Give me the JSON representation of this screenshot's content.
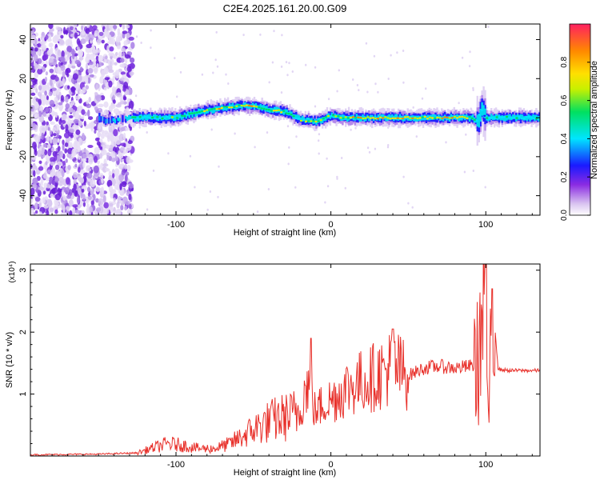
{
  "title": "C2E4.2025.161.20.00.G09",
  "spectrogram": {
    "xlabel": "Height of straight line (km)",
    "ylabel": "Frequency (Hz)",
    "x_ticks": [
      "-100",
      "0",
      "100"
    ],
    "y_ticks": [
      "40",
      "20",
      "0",
      "-20",
      "-40"
    ],
    "colorbar_label": "Normalized spectral amplitude",
    "colorbar_ticks": [
      "0.0",
      "0.2",
      "0.4",
      "0.6",
      "0.8"
    ],
    "colorbar_colors": [
      "#d9c3f0",
      "#8a2be2",
      "#1a1aff",
      "#00e5ff",
      "#00e060",
      "#c8f000",
      "#ffe000",
      "#ff8800",
      "#ff2060"
    ]
  },
  "snr": {
    "xlabel": "Height of straight line (km)",
    "ylabel": "SNR (10 * v/v)",
    "multiplier": "(x10⁴)",
    "x_ticks": [
      "-100",
      "0",
      "100"
    ],
    "y_ticks": [
      "3",
      "2",
      "1"
    ],
    "line_color": "#e8302a"
  },
  "chart_data": [
    {
      "type": "heatmap",
      "title": "C2E4.2025.161.20.00.G09",
      "xlabel": "Height of straight line (km)",
      "ylabel": "Frequency (Hz)",
      "xlim": [
        -194,
        135
      ],
      "ylim": [
        -50,
        48
      ],
      "colorbar": {
        "label": "Normalized spectral amplitude",
        "range": [
          0,
          1
        ]
      },
      "ridge": {
        "x": [
          -194,
          -150,
          -145,
          -130,
          -120,
          -100,
          -85,
          -70,
          -60,
          -50,
          -40,
          -30,
          -20,
          -10,
          0,
          10,
          20,
          30,
          40,
          50,
          60,
          70,
          80,
          90,
          95,
          97,
          100,
          110,
          120,
          135
        ],
        "frequency": [
          0,
          0,
          -2,
          0,
          0,
          0,
          3,
          5,
          6,
          6,
          4,
          3,
          -1,
          -2,
          1,
          0,
          0,
          0,
          0,
          0,
          0,
          0,
          0,
          0,
          -2,
          5,
          0,
          0,
          0,
          0
        ],
        "amplitude": [
          0.2,
          0.3,
          0.35,
          0.6,
          0.55,
          0.65,
          0.75,
          0.8,
          0.8,
          0.9,
          0.8,
          0.75,
          0.7,
          0.75,
          0.7,
          0.85,
          0.85,
          0.85,
          0.85,
          0.85,
          0.85,
          0.9,
          0.9,
          0.7,
          0.6,
          0.5,
          0.55,
          0.55,
          0.55,
          0.55
        ]
      }
    },
    {
      "type": "line",
      "xlabel": "Height of straight line (km)",
      "ylabel": "SNR (10 * v/v)",
      "y_multiplier": 10000,
      "xlim": [
        -194,
        135
      ],
      "ylim": [
        0,
        3.1
      ],
      "series": [
        {
          "x": [
            -194,
            -150,
            -125,
            -115,
            -105,
            -95,
            -85,
            -75,
            -65,
            -55,
            -45,
            -35,
            -25,
            -20,
            -15,
            -10,
            -5,
            0,
            10,
            20,
            30,
            40,
            50,
            60,
            70,
            80,
            90,
            95,
            98,
            100,
            102,
            104,
            108,
            115,
            125,
            135
          ],
          "values": [
            0.02,
            0.03,
            0.05,
            0.13,
            0.2,
            0.17,
            0.12,
            0.12,
            0.2,
            0.35,
            0.5,
            0.6,
            0.65,
            0.75,
            1.2,
            0.7,
            0.85,
            0.9,
            1.1,
            1.2,
            1.3,
            1.45,
            1.3,
            1.42,
            1.45,
            1.42,
            1.45,
            1.5,
            2.2,
            3.1,
            0.2,
            2.7,
            1.4,
            1.38,
            1.38,
            1.38
          ]
        }
      ]
    }
  ]
}
